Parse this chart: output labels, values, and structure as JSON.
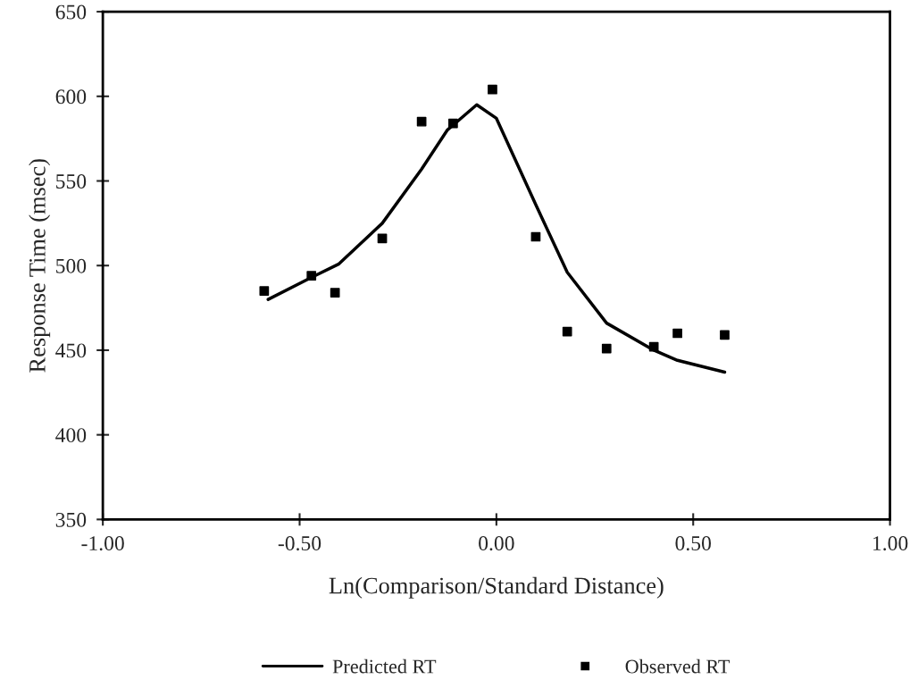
{
  "chart_data": {
    "type": "line",
    "xlabel": "Ln(Comparison/Standard Distance)",
    "ylabel": "Response Time (msec)",
    "xlim": [
      -1,
      1
    ],
    "xticks": [
      {
        "value": -1,
        "label": "-1.00"
      },
      {
        "value": -0.5,
        "label": "-0.50"
      },
      {
        "value": 0,
        "label": "0.00"
      },
      {
        "value": 0.5,
        "label": "0.50"
      },
      {
        "value": 1,
        "label": "1.00"
      }
    ],
    "ylim": [
      350,
      650
    ],
    "yticks": [
      350,
      400,
      450,
      500,
      550,
      600,
      650
    ],
    "grid": false,
    "legend": "bottom",
    "series": [
      {
        "name": "Predicted RT",
        "color": "#000000",
        "marker": "none",
        "line_style": "solid",
        "x": [
          -0.58,
          -0.47,
          -0.4,
          -0.29,
          -0.19,
          -0.125,
          -0.05,
          0.0,
          0.1,
          0.18,
          0.28,
          0.4,
          0.46,
          0.58
        ],
        "values": [
          480,
          493,
          501,
          525,
          557,
          580,
          595,
          587,
          536,
          496,
          466,
          450,
          444,
          437
        ]
      },
      {
        "name": "Observed RT",
        "type": "scatter",
        "color": "#000000",
        "marker": "square",
        "x": [
          -0.59,
          -0.47,
          -0.41,
          -0.29,
          -0.19,
          -0.11,
          -0.01,
          0.1,
          0.18,
          0.28,
          0.4,
          0.46,
          0.58
        ],
        "values": [
          485,
          494,
          484,
          516,
          585,
          584,
          604,
          517,
          461,
          451,
          452,
          460,
          459
        ]
      }
    ]
  }
}
